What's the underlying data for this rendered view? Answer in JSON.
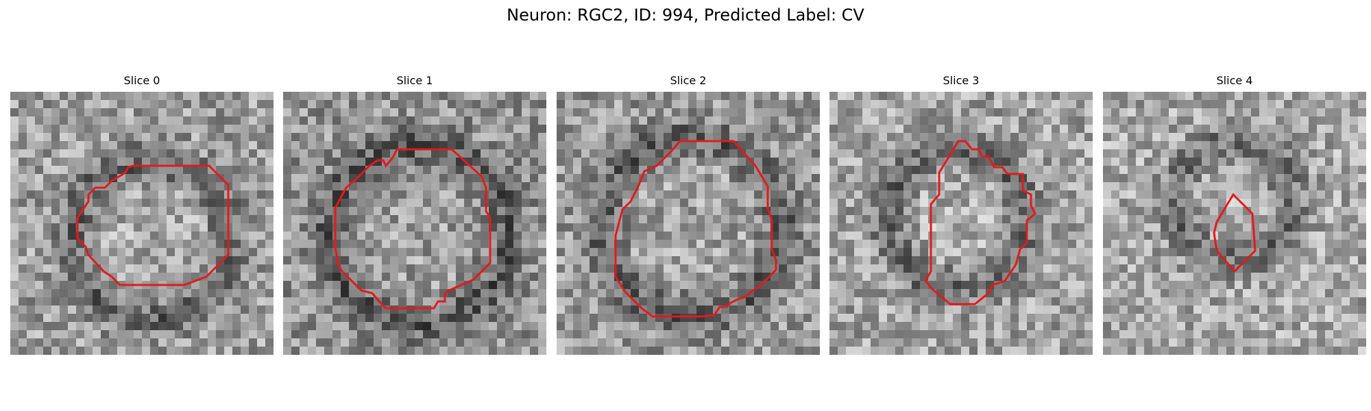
{
  "figure": {
    "title": "Neuron: RGC2, ID: 994, Predicted Label: CV"
  },
  "contour_color": "#e31a1c",
  "slices": [
    {
      "label": "Slice 0",
      "seed": 11,
      "dark_center": [
        0.52,
        0.55
      ],
      "dark_radius": 0.3,
      "brightness": 0.62
    },
    {
      "label": "Slice 1",
      "seed": 23,
      "dark_center": [
        0.5,
        0.53
      ],
      "dark_radius": 0.34,
      "brightness": 0.58
    },
    {
      "label": "Slice 2",
      "seed": 37,
      "dark_center": [
        0.5,
        0.5
      ],
      "dark_radius": 0.34,
      "brightness": 0.6
    },
    {
      "label": "Slice 3",
      "seed": 41,
      "dark_center": [
        0.47,
        0.47
      ],
      "dark_radius": 0.26,
      "brightness": 0.64
    },
    {
      "label": "Slice 4",
      "seed": 53,
      "dark_center": [
        0.48,
        0.4
      ],
      "dark_radius": 0.22,
      "brightness": 0.66
    }
  ]
}
